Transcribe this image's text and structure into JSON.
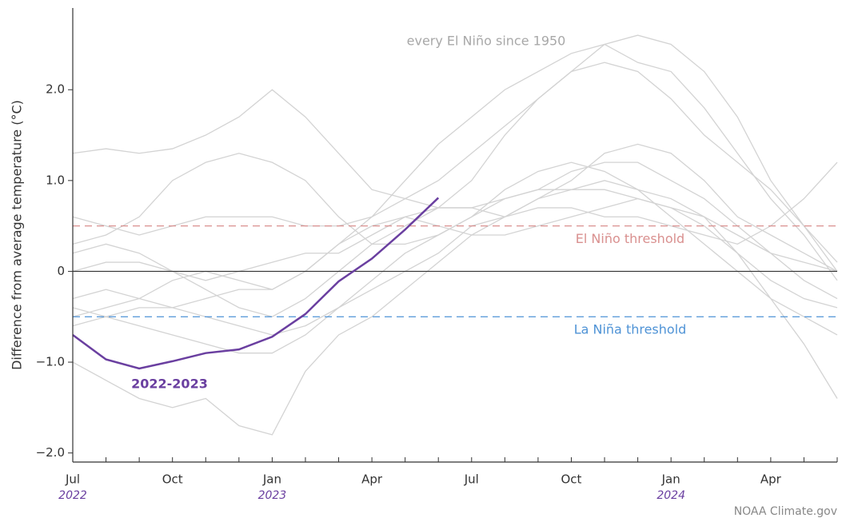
{
  "chart_data": {
    "type": "line",
    "annotation": "every El Niño since 1950",
    "ylabel": "Difference from average temperature (°C)",
    "source": "NOAA Climate.gov",
    "categories": [
      "Jul",
      null,
      null,
      "Oct",
      null,
      null,
      "Jan",
      null,
      null,
      "Apr",
      null,
      null,
      "Jul",
      null,
      null,
      "Oct",
      null,
      null,
      "Jan",
      null,
      null,
      "Apr",
      null,
      null
    ],
    "year_labels": [
      "2022",
      "2023",
      "2024"
    ],
    "ylim": [
      -2.1,
      2.9
    ],
    "yticks": [
      {
        "value": -2,
        "label": "−2.0"
      },
      {
        "value": -1,
        "label": "−1.0"
      },
      0,
      {
        "value": 1,
        "label": "1.0"
      },
      {
        "value": 2,
        "label": "2.0"
      }
    ],
    "thresholds": [
      {
        "name": "El Niño threshold",
        "value": 0.5,
        "color": "#d9908f"
      },
      {
        "name": "La Niña threshold",
        "value": -0.5,
        "color": "#4f93d6"
      }
    ],
    "background_color": "#d3d3d3",
    "series": [
      {
        "name": "2022-2023",
        "color": "#6a3fa0",
        "values": [
          -0.7,
          -0.97,
          -1.07,
          -0.99,
          -0.9,
          -0.86,
          -0.72,
          -0.47,
          -0.11,
          0.14,
          0.46,
          0.81,
          null,
          null,
          null,
          null,
          null,
          null,
          null,
          null,
          null,
          null,
          null,
          null
        ]
      }
    ],
    "background_series": [
      [
        -0.5,
        -0.4,
        -0.3,
        -0.1,
        0.0,
        -0.1,
        -0.2,
        0.0,
        0.3,
        0.6,
        1.0,
        1.4,
        1.7,
        2.0,
        2.2,
        2.4,
        2.5,
        2.3,
        2.2,
        1.8,
        1.3,
        0.8,
        0.4,
        -0.1
      ],
      [
        0.6,
        0.5,
        0.4,
        0.5,
        0.6,
        0.6,
        0.6,
        0.5,
        0.5,
        0.6,
        0.8,
        1.0,
        1.3,
        1.6,
        1.9,
        2.2,
        2.5,
        2.6,
        2.5,
        2.2,
        1.7,
        1.0,
        0.5,
        0.0
      ],
      [
        0.0,
        0.1,
        0.1,
        0.0,
        -0.1,
        0.0,
        0.1,
        0.2,
        0.2,
        0.4,
        0.6,
        0.7,
        1.0,
        1.5,
        1.9,
        2.2,
        2.3,
        2.2,
        1.9,
        1.5,
        1.2,
        0.9,
        0.5,
        0.1
      ],
      [
        -0.4,
        -0.5,
        -0.6,
        -0.7,
        -0.8,
        -0.9,
        -0.9,
        -0.7,
        -0.4,
        -0.1,
        0.2,
        0.4,
        0.6,
        0.8,
        0.9,
        1.1,
        1.2,
        1.2,
        1.0,
        0.8,
        0.5,
        0.2,
        -0.1,
        -0.3
      ],
      [
        1.3,
        1.35,
        1.3,
        1.35,
        1.5,
        1.7,
        2.0,
        1.7,
        1.3,
        0.9,
        0.8,
        0.7,
        0.7,
        0.8,
        0.9,
        0.9,
        0.9,
        0.8,
        0.7,
        0.6,
        0.4,
        0.2,
        0.1,
        0.0
      ],
      [
        -1.0,
        -1.2,
        -1.4,
        -1.5,
        -1.4,
        -1.7,
        -1.8,
        -1.1,
        -0.7,
        -0.5,
        -0.2,
        0.1,
        0.4,
        0.6,
        0.8,
        0.9,
        1.0,
        0.9,
        0.8,
        0.6,
        0.2,
        -0.3,
        -0.8,
        -1.4
      ],
      [
        0.2,
        0.3,
        0.2,
        0.0,
        -0.2,
        -0.4,
        -0.5,
        -0.3,
        0.0,
        0.3,
        0.5,
        0.7,
        0.7,
        0.6,
        0.8,
        1.0,
        1.3,
        1.4,
        1.3,
        1.0,
        0.6,
        0.4,
        0.2,
        0.0
      ],
      [
        -0.3,
        -0.2,
        -0.3,
        -0.4,
        -0.5,
        -0.6,
        -0.7,
        -0.6,
        -0.4,
        -0.2,
        0.0,
        0.2,
        0.5,
        0.6,
        0.7,
        0.7,
        0.6,
        0.6,
        0.5,
        0.4,
        0.3,
        0.5,
        0.8,
        1.2
      ],
      [
        0.3,
        0.4,
        0.6,
        1.0,
        1.2,
        1.3,
        1.2,
        1.0,
        0.6,
        0.3,
        0.3,
        0.4,
        0.6,
        0.9,
        1.1,
        1.2,
        1.1,
        0.9,
        0.6,
        0.3,
        0.0,
        -0.3,
        -0.5,
        -0.7
      ],
      [
        -0.6,
        -0.5,
        -0.4,
        -0.4,
        -0.3,
        -0.2,
        -0.2,
        0.0,
        0.3,
        0.5,
        0.6,
        0.5,
        0.4,
        0.4,
        0.5,
        0.6,
        0.7,
        0.8,
        0.7,
        0.5,
        0.2,
        -0.1,
        -0.3,
        -0.4
      ]
    ]
  }
}
